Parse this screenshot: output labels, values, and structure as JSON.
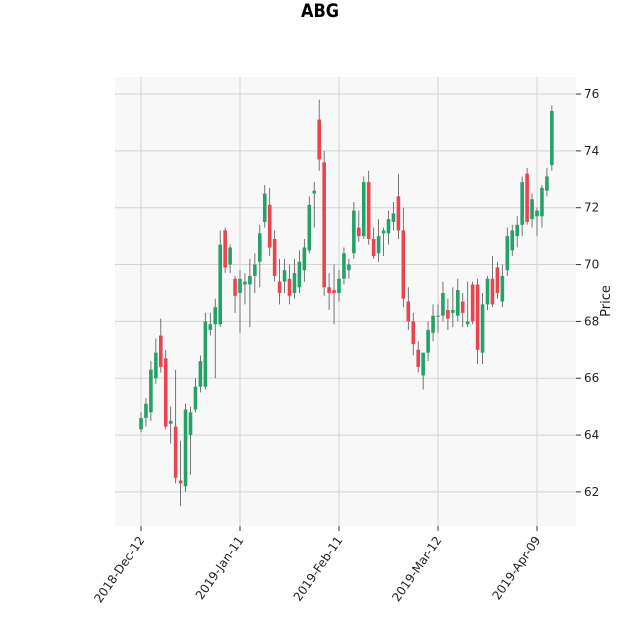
{
  "chart_data": {
    "type": "candlestick",
    "title": "ABG",
    "xlabel": "",
    "ylabel": "Price",
    "y_axis_side": "right",
    "ylim": [
      60.8,
      76.6
    ],
    "yticks": [
      62,
      64,
      66,
      68,
      70,
      72,
      74,
      76
    ],
    "xticks": [
      {
        "index": 0,
        "label": "2018-Dec-12"
      },
      {
        "index": 20,
        "label": "2019-Jan-11"
      },
      {
        "index": 40,
        "label": "2019-Feb-11"
      },
      {
        "index": 60,
        "label": "2019-Mar-12"
      },
      {
        "index": 80,
        "label": "2019-Apr-09"
      }
    ],
    "grid": true,
    "colors": {
      "up": "#26a269",
      "down": "#e8454f",
      "wick": "#555555",
      "plot_bg": "#f8f8f8",
      "grid": "#d5d5d5"
    },
    "candles": [
      [
        64.2,
        64.8,
        64.1,
        64.6
      ],
      [
        64.6,
        65.3,
        64.3,
        65.1
      ],
      [
        64.8,
        66.6,
        64.5,
        66.3
      ],
      [
        66.0,
        67.4,
        65.8,
        66.9
      ],
      [
        67.5,
        68.1,
        66.2,
        66.4
      ],
      [
        66.7,
        67.0,
        64.2,
        64.3
      ],
      [
        64.4,
        65.0,
        63.7,
        64.5
      ],
      [
        64.3,
        66.3,
        62.3,
        62.5
      ],
      [
        62.4,
        63.8,
        61.5,
        62.3
      ],
      [
        62.2,
        65.1,
        62.0,
        64.9
      ],
      [
        64.0,
        65.0,
        62.6,
        64.8
      ],
      [
        64.9,
        66.0,
        64.8,
        65.7
      ],
      [
        65.7,
        66.8,
        65.5,
        66.6
      ],
      [
        65.7,
        68.3,
        65.6,
        68.0
      ],
      [
        67.7,
        68.3,
        67.5,
        67.9
      ],
      [
        67.9,
        68.8,
        66.0,
        68.5
      ],
      [
        67.9,
        71.2,
        67.8,
        70.7
      ],
      [
        71.2,
        71.3,
        69.7,
        69.9
      ],
      [
        70.0,
        70.7,
        69.7,
        70.6
      ],
      [
        69.5,
        69.6,
        68.3,
        68.9
      ],
      [
        69.0,
        69.8,
        67.6,
        69.5
      ],
      [
        69.3,
        69.7,
        68.6,
        69.4
      ],
      [
        69.3,
        70.2,
        67.8,
        69.6
      ],
      [
        69.6,
        70.4,
        69.0,
        70.0
      ],
      [
        70.1,
        71.4,
        69.2,
        71.1
      ],
      [
        71.5,
        72.8,
        71.3,
        72.5
      ],
      [
        72.1,
        72.7,
        70.3,
        70.6
      ],
      [
        70.9,
        71.2,
        69.4,
        69.6
      ],
      [
        69.4,
        70.2,
        68.6,
        69.0
      ],
      [
        69.4,
        70.2,
        69.0,
        69.8
      ],
      [
        69.5,
        70.0,
        68.6,
        68.9
      ],
      [
        69.0,
        70.2,
        68.8,
        69.7
      ],
      [
        69.2,
        70.5,
        69.0,
        70.1
      ],
      [
        69.8,
        70.9,
        69.4,
        70.6
      ],
      [
        70.5,
        72.4,
        70.4,
        72.1
      ],
      [
        72.5,
        72.9,
        71.3,
        72.6
      ],
      [
        75.1,
        75.8,
        73.3,
        73.7
      ],
      [
        73.6,
        74.0,
        68.9,
        69.2
      ],
      [
        69.2,
        69.7,
        68.4,
        69.0
      ],
      [
        69.1,
        70.0,
        67.9,
        69.0
      ],
      [
        69.0,
        69.8,
        68.7,
        69.5
      ],
      [
        69.5,
        70.6,
        69.3,
        70.4
      ],
      [
        69.8,
        70.2,
        69.5,
        70.0
      ],
      [
        70.4,
        72.2,
        70.2,
        71.9
      ],
      [
        71.3,
        71.9,
        70.8,
        71.0
      ],
      [
        71.0,
        73.1,
        70.9,
        72.9
      ],
      [
        72.9,
        73.3,
        70.7,
        70.9
      ],
      [
        70.9,
        71.3,
        70.2,
        70.3
      ],
      [
        70.4,
        71.6,
        70.1,
        71.0
      ],
      [
        71.1,
        71.3,
        70.3,
        71.2
      ],
      [
        71.1,
        71.9,
        70.7,
        71.6
      ],
      [
        71.5,
        72.2,
        71.2,
        71.8
      ],
      [
        72.4,
        73.2,
        70.9,
        71.2
      ],
      [
        71.2,
        72.0,
        68.5,
        68.8
      ],
      [
        68.7,
        69.2,
        67.7,
        68.0
      ],
      [
        68.0,
        68.3,
        66.8,
        67.2
      ],
      [
        67.0,
        67.3,
        66.2,
        66.4
      ],
      [
        66.1,
        66.9,
        65.6,
        66.9
      ],
      [
        66.9,
        68.0,
        66.6,
        67.7
      ],
      [
        67.6,
        68.6,
        67.3,
        68.2
      ],
      [
        68.2,
        68.6,
        67.6,
        68.2
      ],
      [
        68.2,
        69.4,
        68.0,
        69.0
      ],
      [
        68.4,
        68.8,
        67.7,
        68.1
      ],
      [
        68.3,
        69.2,
        67.8,
        68.4
      ],
      [
        68.2,
        69.5,
        68.0,
        69.1
      ],
      [
        68.7,
        69.0,
        67.8,
        68.3
      ],
      [
        67.9,
        69.4,
        67.8,
        68.0
      ],
      [
        69.3,
        69.4,
        67.9,
        68.0
      ],
      [
        69.3,
        69.5,
        66.5,
        67.0
      ],
      [
        66.9,
        69.0,
        66.5,
        68.6
      ],
      [
        68.6,
        69.6,
        68.4,
        69.5
      ],
      [
        69.5,
        70.3,
        68.5,
        68.6
      ],
      [
        69.9,
        70.1,
        68.8,
        69.0
      ],
      [
        68.7,
        70.0,
        68.5,
        69.6
      ],
      [
        69.8,
        71.3,
        69.6,
        71.0
      ],
      [
        70.5,
        71.4,
        70.3,
        71.2
      ],
      [
        71.0,
        71.7,
        70.6,
        71.4
      ],
      [
        71.4,
        73.1,
        71.0,
        72.9
      ],
      [
        73.2,
        73.4,
        71.4,
        71.5
      ],
      [
        71.6,
        72.5,
        71.3,
        72.3
      ],
      [
        71.7,
        72.0,
        71.0,
        71.9
      ],
      [
        71.7,
        72.8,
        71.3,
        72.7
      ],
      [
        72.6,
        73.4,
        72.4,
        73.1
      ],
      [
        73.5,
        75.6,
        73.3,
        75.4
      ]
    ]
  }
}
